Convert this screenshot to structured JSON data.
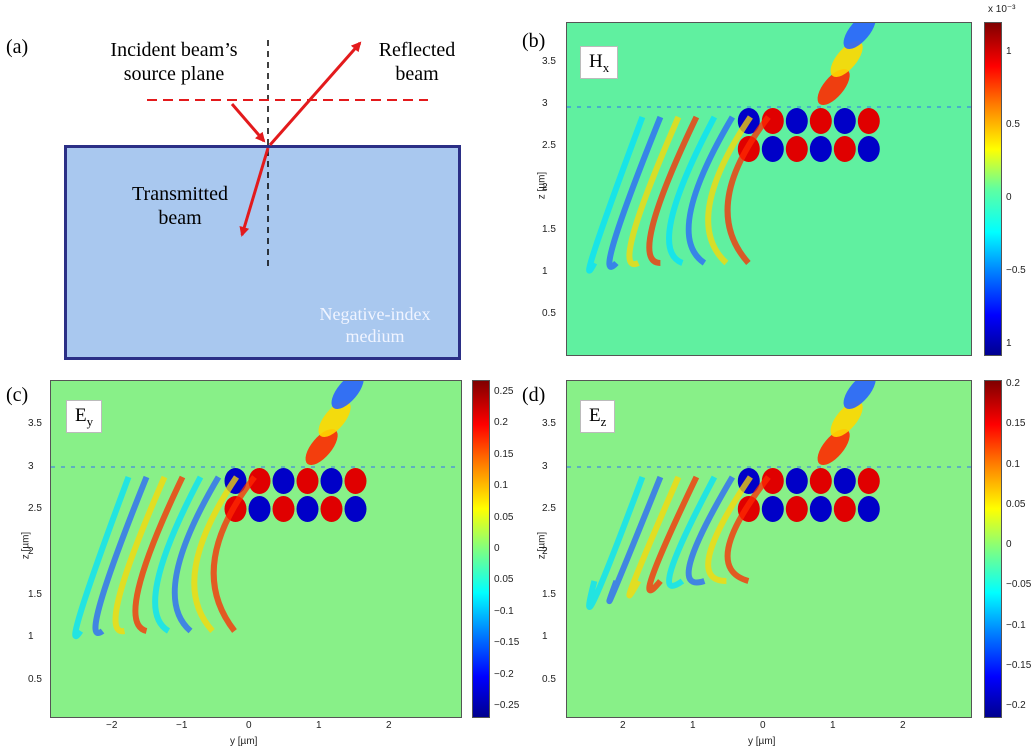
{
  "panels": {
    "a": {
      "letter": "(a)",
      "incident_label_line1": "Incident beam’s",
      "incident_label_line2": "source plane",
      "reflected_label_line1": "Reflected",
      "reflected_label_line2": "beam",
      "transmitted_label_line1": "Transmitted",
      "transmitted_label_line2": "beam",
      "medium_label_line1": "Negative-index",
      "medium_label_line2": "medium",
      "colors": {
        "medium_fill": "#a9c8ef",
        "medium_border": "#2b2f86",
        "arrow": "#e31a1c"
      }
    },
    "b": {
      "letter": "(b)",
      "field_main": "H",
      "field_sub": "x",
      "ylabel": "z [µm]",
      "yticks": [
        "3.5",
        "3",
        "2.5",
        "2",
        "1.5",
        "1",
        "0.5"
      ],
      "cbar_exponent": "x 10⁻³",
      "cbar_ticks": [
        "1",
        "0.5",
        "0",
        "−0.5",
        "1"
      ],
      "background": "#60f0a0"
    },
    "c": {
      "letter": "(c)",
      "field_main": "E",
      "field_sub": "y",
      "ylabel": "z [µm]",
      "xlabel": "y [µm]",
      "yticks": [
        "3.5",
        "3",
        "2.5",
        "2",
        "1.5",
        "1",
        "0.5"
      ],
      "xticks": [
        "−2",
        "−1",
        "0",
        "1",
        "2"
      ],
      "cbar_ticks": [
        "0.25",
        "0.2",
        "0.15",
        "0.1",
        "0.05",
        "0",
        "0.05",
        "−0.1",
        "−0.15",
        "−0.2",
        "−0.25"
      ],
      "background": "#88f088"
    },
    "d": {
      "letter": "(d)",
      "field_main": "E",
      "field_sub": "z",
      "ylabel": "z [µm]",
      "xlabel": "y [µm]",
      "yticks": [
        "3.5",
        "3",
        "2.5",
        "2",
        "1.5",
        "1",
        "0.5"
      ],
      "xticks": [
        "2",
        "1",
        "0",
        "1",
        "2"
      ],
      "cbar_ticks": [
        "0.2",
        "0.15",
        "0.1",
        "0.05",
        "0",
        "−0.05",
        "−0.1",
        "−0.15",
        "−0.2"
      ],
      "background": "#88f088"
    }
  }
}
